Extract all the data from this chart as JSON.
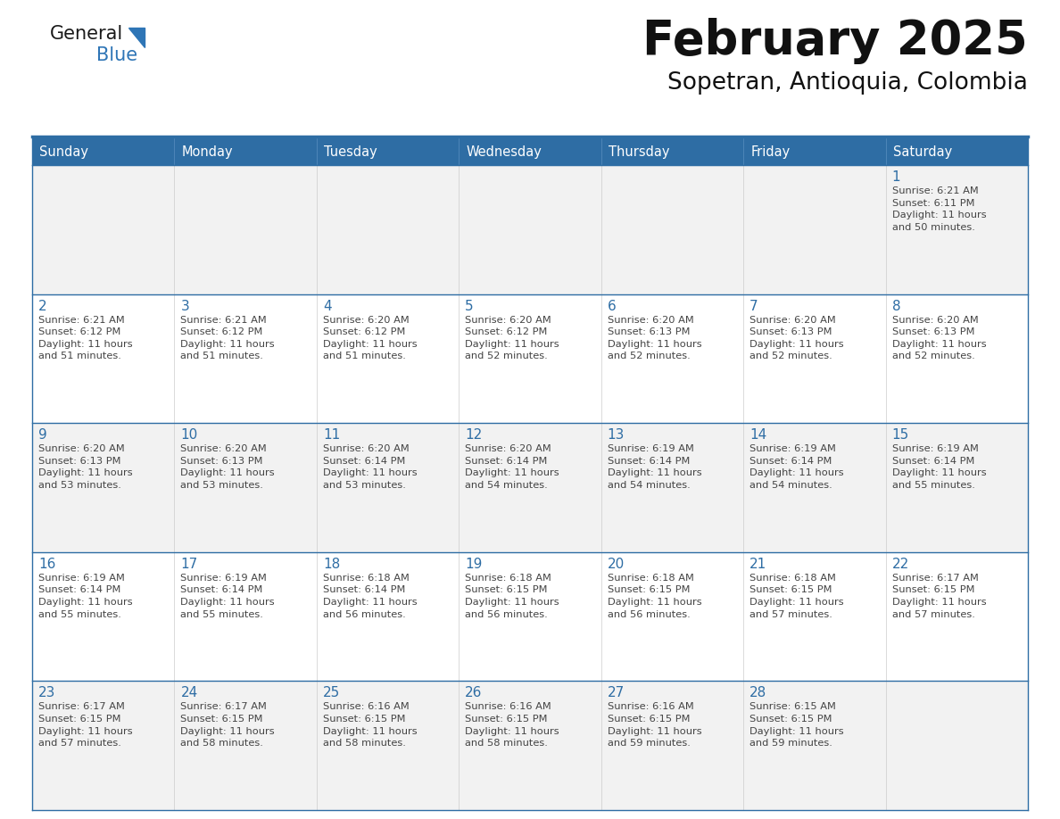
{
  "title": "February 2025",
  "subtitle": "Sopetran, Antioquia, Colombia",
  "days_of_week": [
    "Sunday",
    "Monday",
    "Tuesday",
    "Wednesday",
    "Thursday",
    "Friday",
    "Saturday"
  ],
  "header_bg": "#2E6DA4",
  "header_text": "#FFFFFF",
  "cell_bg_odd": "#F2F2F2",
  "cell_bg_even": "#FFFFFF",
  "border_color": "#2E6DA4",
  "day_number_color": "#2E6DA4",
  "text_color": "#444444",
  "logo_general_color": "#1a1a1a",
  "logo_blue_color": "#2E75B6",
  "title_color": "#111111",
  "subtitle_color": "#111111",
  "calendar_data": [
    [
      {
        "day": null,
        "info": ""
      },
      {
        "day": null,
        "info": ""
      },
      {
        "day": null,
        "info": ""
      },
      {
        "day": null,
        "info": ""
      },
      {
        "day": null,
        "info": ""
      },
      {
        "day": null,
        "info": ""
      },
      {
        "day": 1,
        "info": "Sunrise: 6:21 AM\nSunset: 6:11 PM\nDaylight: 11 hours\nand 50 minutes."
      }
    ],
    [
      {
        "day": 2,
        "info": "Sunrise: 6:21 AM\nSunset: 6:12 PM\nDaylight: 11 hours\nand 51 minutes."
      },
      {
        "day": 3,
        "info": "Sunrise: 6:21 AM\nSunset: 6:12 PM\nDaylight: 11 hours\nand 51 minutes."
      },
      {
        "day": 4,
        "info": "Sunrise: 6:20 AM\nSunset: 6:12 PM\nDaylight: 11 hours\nand 51 minutes."
      },
      {
        "day": 5,
        "info": "Sunrise: 6:20 AM\nSunset: 6:12 PM\nDaylight: 11 hours\nand 52 minutes."
      },
      {
        "day": 6,
        "info": "Sunrise: 6:20 AM\nSunset: 6:13 PM\nDaylight: 11 hours\nand 52 minutes."
      },
      {
        "day": 7,
        "info": "Sunrise: 6:20 AM\nSunset: 6:13 PM\nDaylight: 11 hours\nand 52 minutes."
      },
      {
        "day": 8,
        "info": "Sunrise: 6:20 AM\nSunset: 6:13 PM\nDaylight: 11 hours\nand 52 minutes."
      }
    ],
    [
      {
        "day": 9,
        "info": "Sunrise: 6:20 AM\nSunset: 6:13 PM\nDaylight: 11 hours\nand 53 minutes."
      },
      {
        "day": 10,
        "info": "Sunrise: 6:20 AM\nSunset: 6:13 PM\nDaylight: 11 hours\nand 53 minutes."
      },
      {
        "day": 11,
        "info": "Sunrise: 6:20 AM\nSunset: 6:14 PM\nDaylight: 11 hours\nand 53 minutes."
      },
      {
        "day": 12,
        "info": "Sunrise: 6:20 AM\nSunset: 6:14 PM\nDaylight: 11 hours\nand 54 minutes."
      },
      {
        "day": 13,
        "info": "Sunrise: 6:19 AM\nSunset: 6:14 PM\nDaylight: 11 hours\nand 54 minutes."
      },
      {
        "day": 14,
        "info": "Sunrise: 6:19 AM\nSunset: 6:14 PM\nDaylight: 11 hours\nand 54 minutes."
      },
      {
        "day": 15,
        "info": "Sunrise: 6:19 AM\nSunset: 6:14 PM\nDaylight: 11 hours\nand 55 minutes."
      }
    ],
    [
      {
        "day": 16,
        "info": "Sunrise: 6:19 AM\nSunset: 6:14 PM\nDaylight: 11 hours\nand 55 minutes."
      },
      {
        "day": 17,
        "info": "Sunrise: 6:19 AM\nSunset: 6:14 PM\nDaylight: 11 hours\nand 55 minutes."
      },
      {
        "day": 18,
        "info": "Sunrise: 6:18 AM\nSunset: 6:14 PM\nDaylight: 11 hours\nand 56 minutes."
      },
      {
        "day": 19,
        "info": "Sunrise: 6:18 AM\nSunset: 6:15 PM\nDaylight: 11 hours\nand 56 minutes."
      },
      {
        "day": 20,
        "info": "Sunrise: 6:18 AM\nSunset: 6:15 PM\nDaylight: 11 hours\nand 56 minutes."
      },
      {
        "day": 21,
        "info": "Sunrise: 6:18 AM\nSunset: 6:15 PM\nDaylight: 11 hours\nand 57 minutes."
      },
      {
        "day": 22,
        "info": "Sunrise: 6:17 AM\nSunset: 6:15 PM\nDaylight: 11 hours\nand 57 minutes."
      }
    ],
    [
      {
        "day": 23,
        "info": "Sunrise: 6:17 AM\nSunset: 6:15 PM\nDaylight: 11 hours\nand 57 minutes."
      },
      {
        "day": 24,
        "info": "Sunrise: 6:17 AM\nSunset: 6:15 PM\nDaylight: 11 hours\nand 58 minutes."
      },
      {
        "day": 25,
        "info": "Sunrise: 6:16 AM\nSunset: 6:15 PM\nDaylight: 11 hours\nand 58 minutes."
      },
      {
        "day": 26,
        "info": "Sunrise: 6:16 AM\nSunset: 6:15 PM\nDaylight: 11 hours\nand 58 minutes."
      },
      {
        "day": 27,
        "info": "Sunrise: 6:16 AM\nSunset: 6:15 PM\nDaylight: 11 hours\nand 59 minutes."
      },
      {
        "day": 28,
        "info": "Sunrise: 6:15 AM\nSunset: 6:15 PM\nDaylight: 11 hours\nand 59 minutes."
      },
      {
        "day": null,
        "info": ""
      }
    ]
  ]
}
